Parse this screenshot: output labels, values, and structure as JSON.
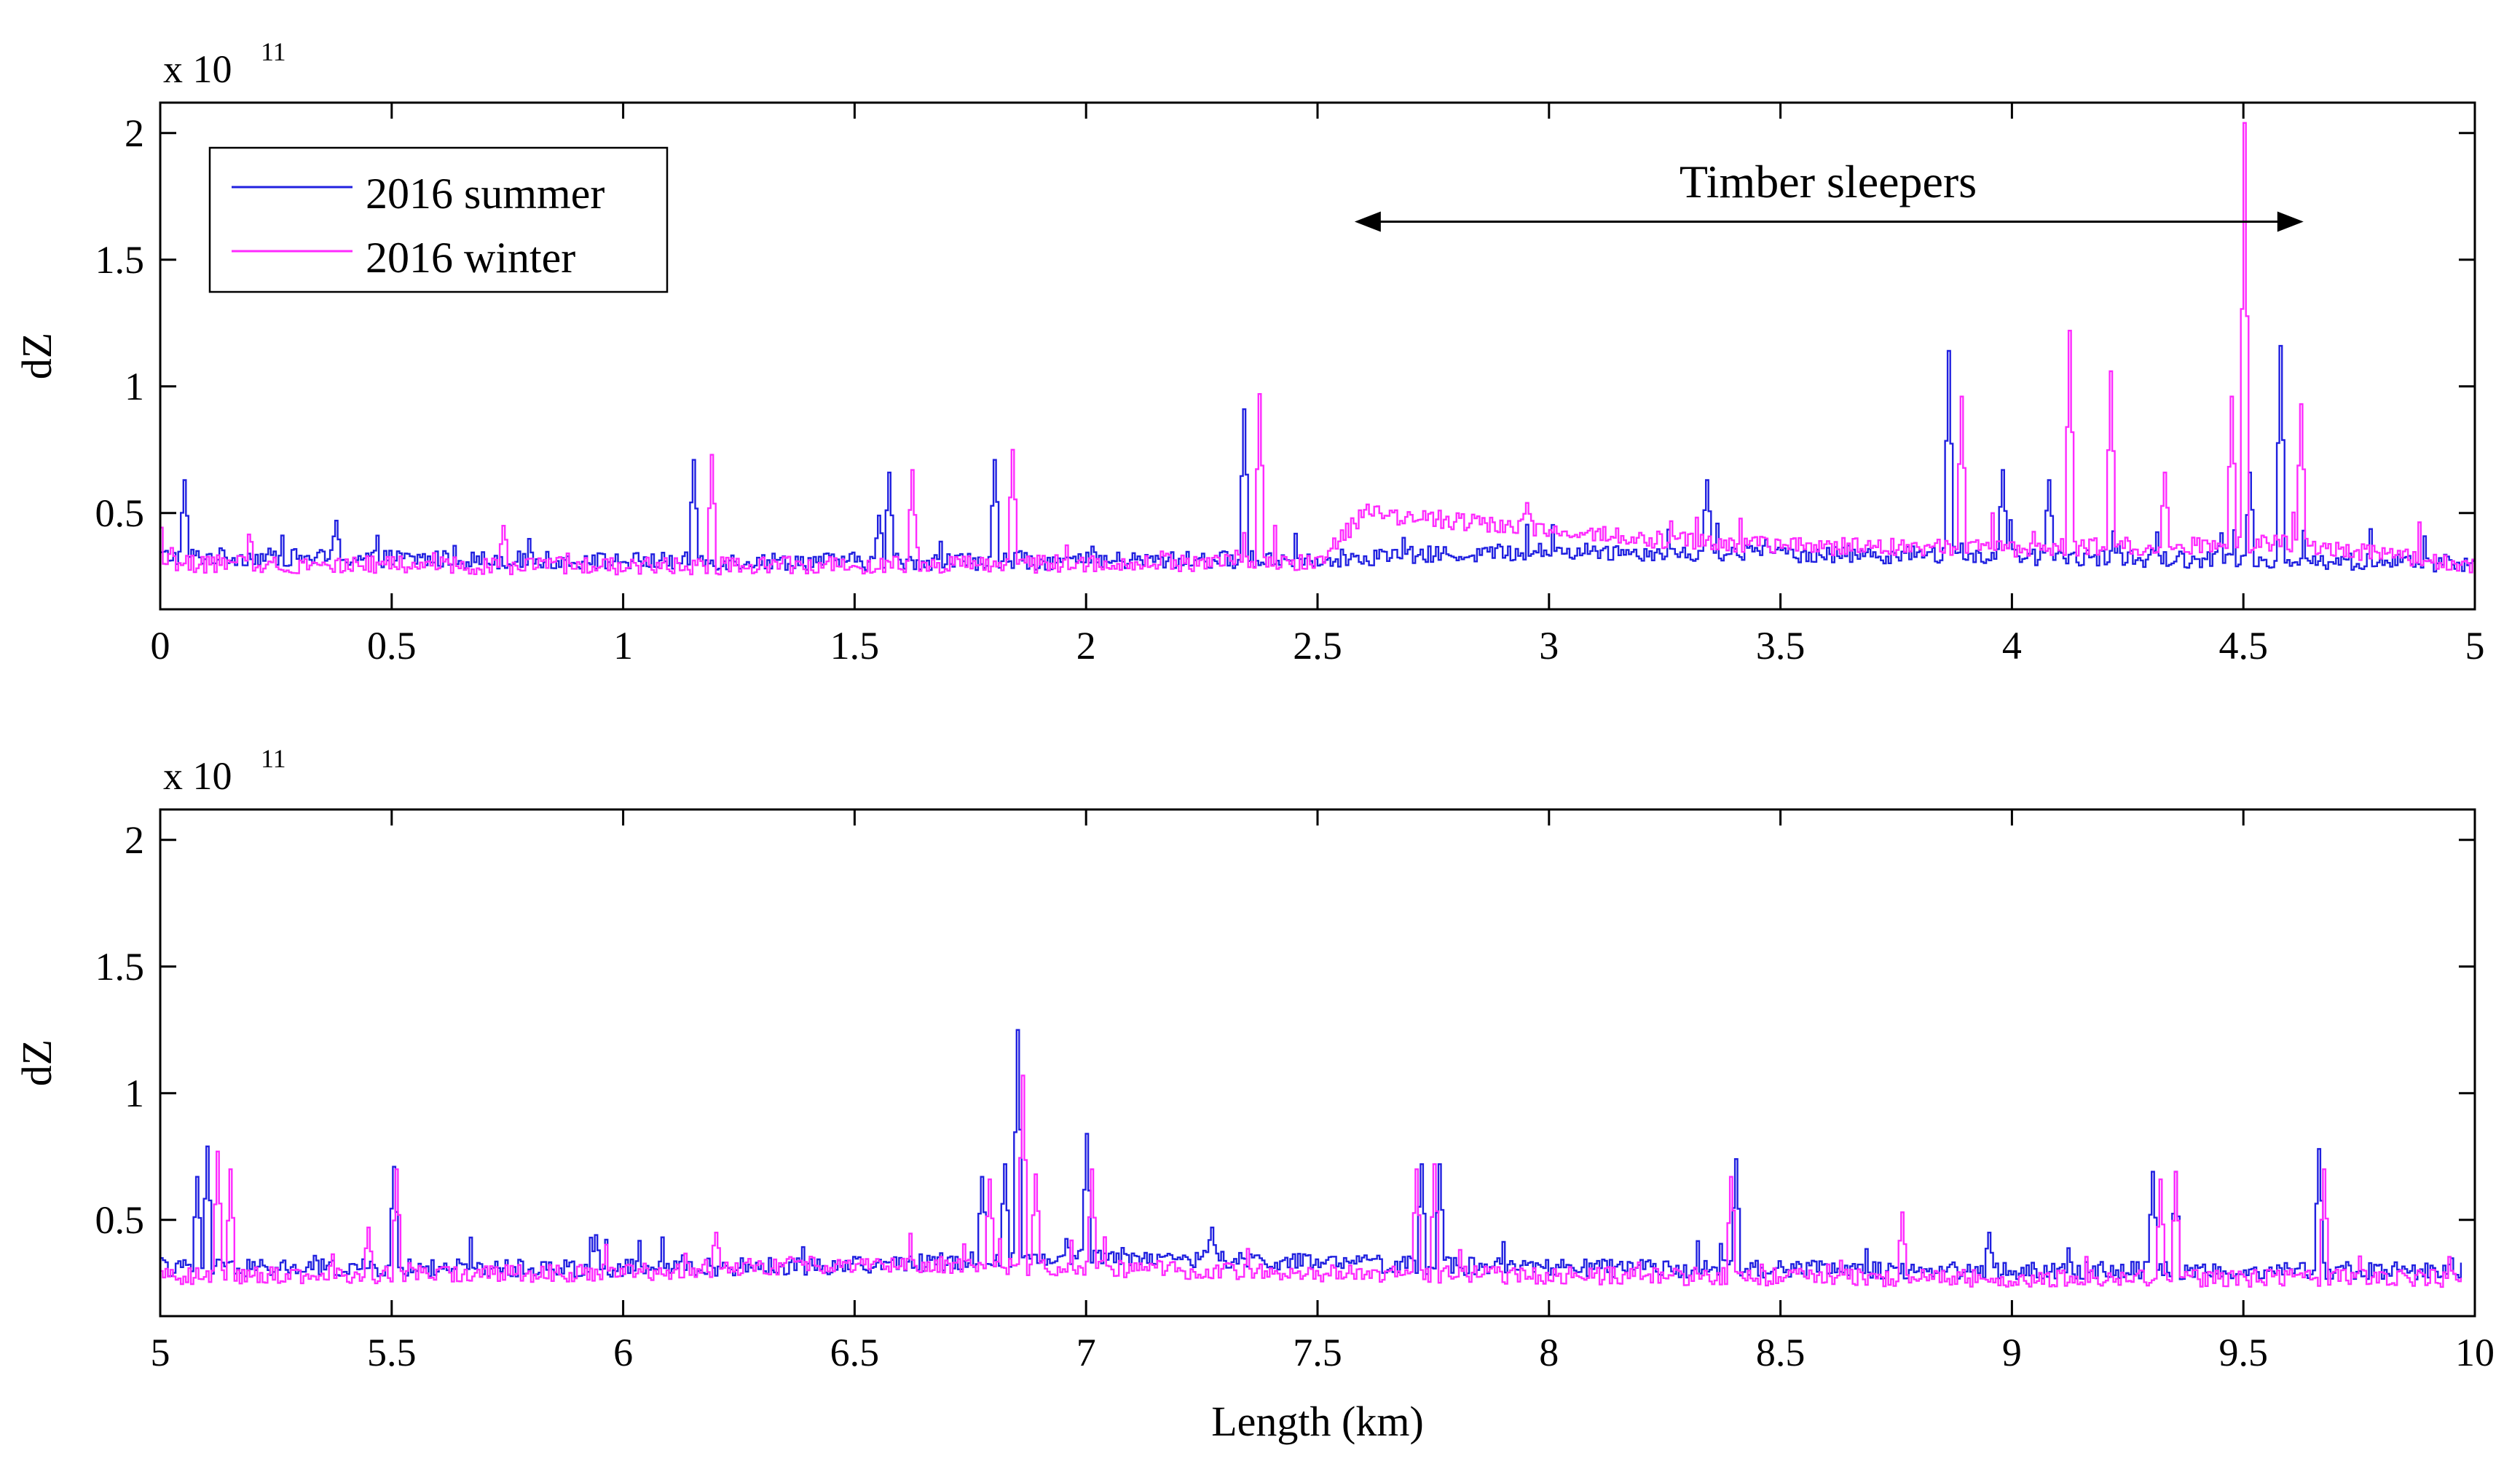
{
  "chart_data": [
    {
      "type": "line",
      "ylabel": "dZ",
      "xlim": [
        0,
        5
      ],
      "ylim": [
        0.12,
        2.12
      ],
      "xticks": [
        "0",
        "0.5",
        "1",
        "1.5",
        "2",
        "2.5",
        "3",
        "3.5",
        "4",
        "4.5",
        "5"
      ],
      "xtick_values": [
        0,
        0.5,
        1,
        1.5,
        2,
        2.5,
        3,
        3.5,
        4,
        4.5,
        5
      ],
      "yticks": [
        "0.5",
        "1",
        "1.5",
        "2"
      ],
      "ytick_values": [
        0.5,
        1,
        1.5,
        2
      ],
      "exponent_base": "x 10",
      "exponent_power": "11",
      "legend": [
        "2016 summer",
        "2016 winter"
      ],
      "legend_position": "top-left",
      "annotation": {
        "text": "Timber sleepers",
        "x_start": 2.58,
        "x_end": 4.63,
        "y": 1.65
      },
      "x_start": 0,
      "x_end": 5,
      "baseline": {
        "summer": [
          [
            0,
            0.33
          ],
          [
            1,
            0.31
          ],
          [
            2,
            0.31
          ],
          [
            2.5,
            0.32
          ],
          [
            3,
            0.35
          ],
          [
            3.5,
            0.34
          ],
          [
            4,
            0.33
          ],
          [
            5,
            0.3
          ]
        ],
        "winter": [
          [
            0,
            0.3
          ],
          [
            1,
            0.29
          ],
          [
            2,
            0.3
          ],
          [
            2.5,
            0.31
          ],
          [
            2.6,
            0.5
          ],
          [
            2.9,
            0.45
          ],
          [
            3.2,
            0.4
          ],
          [
            3.5,
            0.37
          ],
          [
            4,
            0.36
          ],
          [
            4.6,
            0.38
          ],
          [
            5,
            0.29
          ]
        ]
      },
      "series": [
        {
          "name": "2016 summer",
          "color": "#2020e0",
          "peaks": [
            [
              0.05,
              0.63
            ],
            [
              0.38,
              0.47
            ],
            [
              1.15,
              0.71
            ],
            [
              1.55,
              0.49
            ],
            [
              1.57,
              0.66
            ],
            [
              1.8,
              0.71
            ],
            [
              2.34,
              0.91
            ],
            [
              3.34,
              0.63
            ],
            [
              3.86,
              1.14
            ],
            [
              3.98,
              0.67
            ],
            [
              4.08,
              0.63
            ],
            [
              4.51,
              0.66
            ],
            [
              4.58,
              1.16
            ]
          ]
        },
        {
          "name": "2016 winter",
          "color": "#ff2aff",
          "peaks": [
            [
              0.74,
              0.45
            ],
            [
              1.19,
              0.73
            ],
            [
              1.62,
              0.67
            ],
            [
              1.84,
              0.75
            ],
            [
              2.37,
              0.97
            ],
            [
              2.95,
              0.54
            ],
            [
              3.89,
              0.96
            ],
            [
              4.12,
              1.22
            ],
            [
              4.21,
              1.06
            ],
            [
              4.33,
              0.66
            ],
            [
              4.47,
              0.96
            ],
            [
              4.5,
              2.04
            ],
            [
              4.62,
              0.93
            ]
          ]
        }
      ]
    },
    {
      "type": "line",
      "xlabel": "Length (km)",
      "ylabel": "dZ",
      "xlim": [
        5,
        10
      ],
      "ylim": [
        0.12,
        2.12
      ],
      "xticks": [
        "5",
        "5.5",
        "6",
        "6.5",
        "7",
        "7.5",
        "8",
        "8.5",
        "9",
        "9.5",
        "10"
      ],
      "xtick_values": [
        5,
        5.5,
        6,
        6.5,
        7,
        7.5,
        8,
        8.5,
        9,
        9.5,
        10
      ],
      "yticks": [
        "0.5",
        "1",
        "1.5",
        "2"
      ],
      "ytick_values": [
        0.5,
        1,
        1.5,
        2
      ],
      "exponent_base": "x 10",
      "exponent_power": "11",
      "x_start": 5,
      "x_end": 9.97,
      "baseline": {
        "summer": [
          [
            5,
            0.31
          ],
          [
            6,
            0.31
          ],
          [
            6.5,
            0.32
          ],
          [
            7,
            0.36
          ],
          [
            7.5,
            0.33
          ],
          [
            8,
            0.31
          ],
          [
            9,
            0.3
          ],
          [
            10,
            0.3
          ]
        ],
        "winter": [
          [
            5,
            0.28
          ],
          [
            6,
            0.29
          ],
          [
            6.5,
            0.33
          ],
          [
            7,
            0.31
          ],
          [
            7.5,
            0.29
          ],
          [
            8,
            0.28
          ],
          [
            9,
            0.27
          ],
          [
            10,
            0.27
          ]
        ]
      },
      "series": [
        {
          "name": "2016 summer",
          "color": "#2020e0",
          "peaks": [
            [
              5.08,
              0.67
            ],
            [
              5.1,
              0.79
            ],
            [
              5.5,
              0.71
            ],
            [
              5.94,
              0.44
            ],
            [
              6.77,
              0.67
            ],
            [
              6.82,
              0.72
            ],
            [
              6.85,
              1.25
            ],
            [
              7.0,
              0.84
            ],
            [
              7.27,
              0.47
            ],
            [
              7.72,
              0.72
            ],
            [
              7.76,
              0.72
            ],
            [
              8.4,
              0.74
            ],
            [
              8.95,
              0.45
            ],
            [
              9.3,
              0.69
            ],
            [
              9.35,
              0.69
            ],
            [
              9.66,
              0.78
            ]
          ]
        },
        {
          "name": "2016 winter",
          "color": "#ff2aff",
          "peaks": [
            [
              5.12,
              0.77
            ],
            [
              5.15,
              0.7
            ],
            [
              5.45,
              0.47
            ],
            [
              5.51,
              0.7
            ],
            [
              6.2,
              0.45
            ],
            [
              6.79,
              0.66
            ],
            [
              6.86,
              1.07
            ],
            [
              6.89,
              0.68
            ],
            [
              7.01,
              0.7
            ],
            [
              7.71,
              0.7
            ],
            [
              7.75,
              0.72
            ],
            [
              8.39,
              0.67
            ],
            [
              8.76,
              0.53
            ],
            [
              9.32,
              0.66
            ],
            [
              9.35,
              0.69
            ],
            [
              9.67,
              0.7
            ]
          ]
        }
      ]
    }
  ]
}
